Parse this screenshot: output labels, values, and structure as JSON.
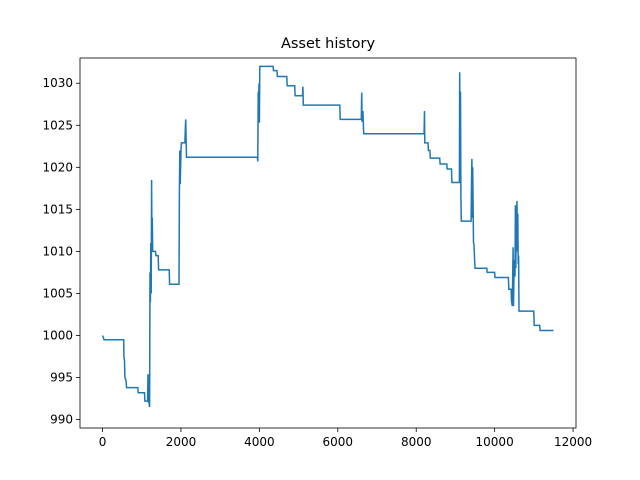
{
  "chart_data": {
    "type": "line",
    "title": "Asset history",
    "xlabel": "",
    "ylabel": "",
    "xlim": [
      -575,
      12075
    ],
    "ylim": [
      989.0,
      1033.0
    ],
    "x_ticks": [
      0,
      2000,
      4000,
      6000,
      8000,
      10000,
      12000
    ],
    "x_tick_labels": [
      "0",
      "2000",
      "4000",
      "6000",
      "8000",
      "10000",
      "12000"
    ],
    "y_ticks": [
      990,
      995,
      1000,
      1005,
      1010,
      1015,
      1020,
      1025,
      1030
    ],
    "y_tick_labels": [
      "990",
      "995",
      "1000",
      "1005",
      "1010",
      "1015",
      "1020",
      "1025",
      "1030"
    ],
    "grid": false,
    "line_color": "#1f77b4",
    "series": [
      {
        "name": "",
        "points": [
          [
            0,
            1000.0
          ],
          [
            40,
            999.5
          ],
          [
            540,
            999.5
          ],
          [
            545,
            997.5
          ],
          [
            560,
            997.0
          ],
          [
            570,
            995.0
          ],
          [
            600,
            994.6
          ],
          [
            610,
            993.8
          ],
          [
            900,
            993.8
          ],
          [
            910,
            993.2
          ],
          [
            1070,
            993.2
          ],
          [
            1080,
            992.2
          ],
          [
            1150,
            992.2
          ],
          [
            1160,
            995.4
          ],
          [
            1170,
            992.0
          ],
          [
            1180,
            995.4
          ],
          [
            1190,
            991.8
          ],
          [
            1200,
            991.5
          ],
          [
            1210,
            1007.5
          ],
          [
            1220,
            1004.0
          ],
          [
            1230,
            1011.0
          ],
          [
            1240,
            1005.0
          ],
          [
            1250,
            1018.5
          ],
          [
            1260,
            1012.0
          ],
          [
            1270,
            1014.0
          ],
          [
            1280,
            1010.0
          ],
          [
            1350,
            1010.0
          ],
          [
            1360,
            1009.5
          ],
          [
            1420,
            1009.5
          ],
          [
            1430,
            1007.8
          ],
          [
            1700,
            1007.8
          ],
          [
            1710,
            1006.1
          ],
          [
            1950,
            1006.1
          ],
          [
            1960,
            1017.0
          ],
          [
            1970,
            1022.0
          ],
          [
            1980,
            1018.0
          ],
          [
            1990,
            1020.0
          ],
          [
            2000,
            1022.0
          ],
          [
            2010,
            1022.9
          ],
          [
            2100,
            1022.9
          ],
          [
            2110,
            1024.5
          ],
          [
            2120,
            1025.7
          ],
          [
            2140,
            1021.2
          ],
          [
            3950,
            1021.2
          ],
          [
            3960,
            1020.7
          ],
          [
            3970,
            1029.0
          ],
          [
            3980,
            1025.5
          ],
          [
            3990,
            1030.0
          ],
          [
            4000,
            1025.3
          ],
          [
            4010,
            1032.0
          ],
          [
            4350,
            1032.0
          ],
          [
            4360,
            1031.5
          ],
          [
            4450,
            1031.5
          ],
          [
            4460,
            1030.8
          ],
          [
            4700,
            1030.8
          ],
          [
            4710,
            1029.7
          ],
          [
            4900,
            1029.7
          ],
          [
            4910,
            1028.5
          ],
          [
            5100,
            1028.5
          ],
          [
            5110,
            1029.6
          ],
          [
            5120,
            1027.4
          ],
          [
            6050,
            1027.4
          ],
          [
            6060,
            1025.7
          ],
          [
            6600,
            1025.7
          ],
          [
            6610,
            1028.9
          ],
          [
            6620,
            1025.4
          ],
          [
            6640,
            1026.7
          ],
          [
            6660,
            1024.0
          ],
          [
            8200,
            1024.0
          ],
          [
            8210,
            1026.7
          ],
          [
            8220,
            1022.9
          ],
          [
            8300,
            1022.9
          ],
          [
            8310,
            1022.0
          ],
          [
            8350,
            1022.0
          ],
          [
            8360,
            1021.1
          ],
          [
            8600,
            1021.1
          ],
          [
            8610,
            1020.4
          ],
          [
            8780,
            1020.4
          ],
          [
            8790,
            1019.8
          ],
          [
            8900,
            1019.8
          ],
          [
            8910,
            1018.2
          ],
          [
            9100,
            1018.2
          ],
          [
            9110,
            1031.3
          ],
          [
            9120,
            1018.2
          ],
          [
            9130,
            1029.0
          ],
          [
            9140,
            1016.5
          ],
          [
            9150,
            1013.6
          ],
          [
            9400,
            1013.6
          ],
          [
            9410,
            1018.0
          ],
          [
            9420,
            1021.0
          ],
          [
            9430,
            1014.0
          ],
          [
            9440,
            1020.0
          ],
          [
            9460,
            1011.0
          ],
          [
            9470,
            1010.9
          ],
          [
            9500,
            1008.0
          ],
          [
            9800,
            1008.0
          ],
          [
            9810,
            1007.5
          ],
          [
            10000,
            1007.5
          ],
          [
            10010,
            1006.9
          ],
          [
            10350,
            1006.9
          ],
          [
            10360,
            1005.5
          ],
          [
            10420,
            1005.5
          ],
          [
            10430,
            1004.1
          ],
          [
            10450,
            1003.5
          ],
          [
            10470,
            1010.5
          ],
          [
            10480,
            1003.5
          ],
          [
            10500,
            1009.0
          ],
          [
            10520,
            1007.0
          ],
          [
            10530,
            1015.5
          ],
          [
            10540,
            1008.0
          ],
          [
            10550,
            1013.5
          ],
          [
            10560,
            1010.0
          ],
          [
            10570,
            1016.0
          ],
          [
            10580,
            1011.0
          ],
          [
            10590,
            1014.5
          ],
          [
            10600,
            1008.5
          ],
          [
            10610,
            1009.5
          ],
          [
            10620,
            1002.9
          ],
          [
            11000,
            1002.9
          ],
          [
            11010,
            1001.2
          ],
          [
            11150,
            1001.2
          ],
          [
            11160,
            1000.6
          ],
          [
            11500,
            1000.6
          ]
        ]
      }
    ]
  }
}
